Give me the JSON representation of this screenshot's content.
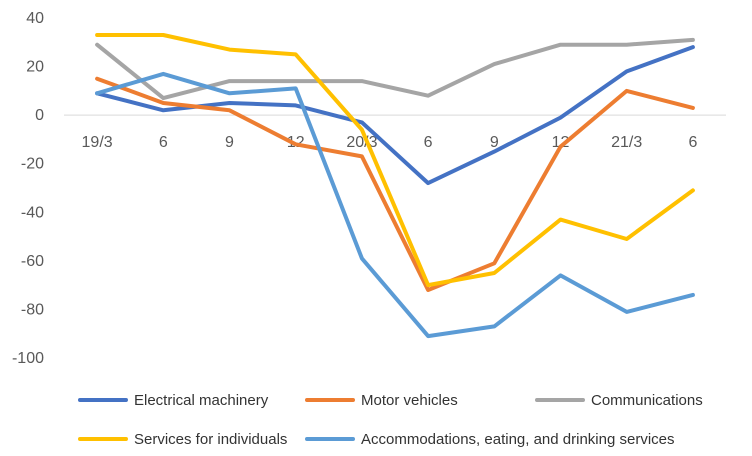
{
  "chart_data": {
    "type": "line",
    "title": "",
    "xlabel": "",
    "ylabel": "",
    "categories": [
      "19/3",
      "6",
      "9",
      "12",
      "20/3",
      "6",
      "9",
      "12",
      "21/3",
      "6"
    ],
    "ylim": [
      -100,
      40
    ],
    "yticks": [
      "40",
      "20",
      "0",
      "-20",
      "-40",
      "-60",
      "-80",
      "-100"
    ],
    "grid": false,
    "legend_position": "bottom",
    "series": [
      {
        "name": "Electrical machinery",
        "color": "#4472C4",
        "values": [
          9,
          2,
          5,
          4,
          -3,
          -28,
          -15,
          -1,
          18,
          28
        ]
      },
      {
        "name": "Motor vehicles",
        "color": "#ED7D31",
        "values": [
          15,
          5,
          2,
          -12,
          -17,
          -72,
          -61,
          -13,
          10,
          3
        ]
      },
      {
        "name": "Communications",
        "color": "#A5A5A5",
        "values": [
          29,
          7,
          14,
          14,
          14,
          8,
          21,
          29,
          29,
          31
        ]
      },
      {
        "name": "Services for individuals",
        "color": "#FFC000",
        "values": [
          33,
          33,
          27,
          25,
          -6,
          -70,
          -65,
          -43,
          -51,
          -31
        ]
      },
      {
        "name": "Accommodations, eating, and drinking services",
        "color": "#5B9BD5",
        "values": [
          9,
          17,
          9,
          11,
          -59,
          -91,
          -87,
          -66,
          -81,
          -74
        ]
      }
    ]
  }
}
